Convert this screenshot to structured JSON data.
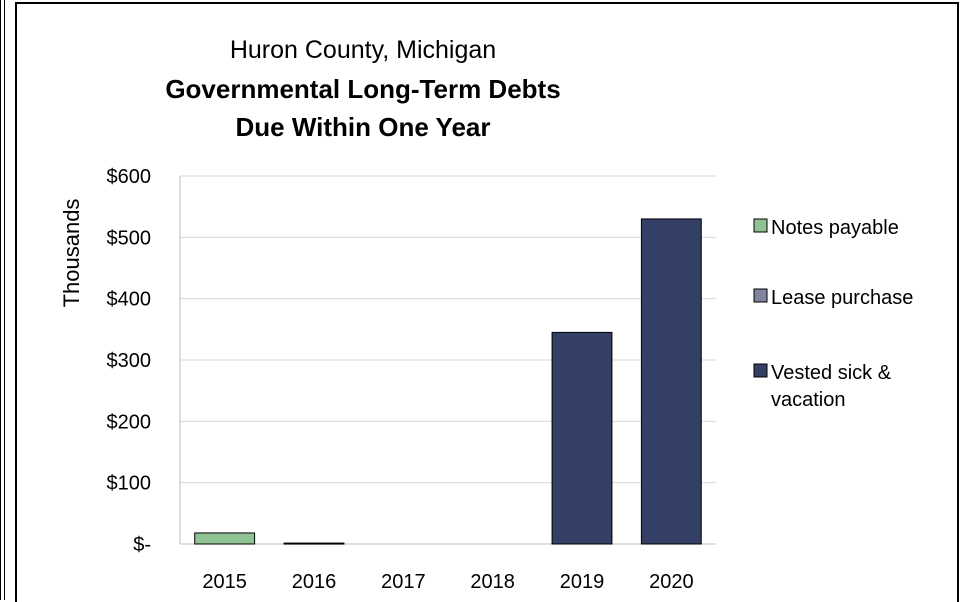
{
  "chart_data": {
    "type": "bar",
    "stacked": true,
    "title_line1": "Huron County, Michigan",
    "title_line2": "Governmental Long-Term Debts",
    "title_line3": "Due Within One Year",
    "ylabel": "Thousands",
    "xlabel": "",
    "categories": [
      "2015",
      "2016",
      "2017",
      "2018",
      "2019",
      "2020"
    ],
    "ylim": [
      0,
      600
    ],
    "yticks": [
      0,
      100,
      200,
      300,
      400,
      500,
      600
    ],
    "ytick_labels": [
      "$-",
      "$100",
      "$200",
      "$300",
      "$400",
      "$500",
      "$600"
    ],
    "grid": true,
    "legend_position": "right",
    "series": [
      {
        "name": "Notes payable",
        "color": "#8fc393",
        "values": [
          18,
          0,
          0,
          0,
          0,
          0
        ]
      },
      {
        "name": "Lease purchase",
        "color": "#7f849f",
        "values": [
          0,
          1.5,
          0,
          0,
          0,
          0
        ]
      },
      {
        "name": "Vested sick &",
        "name_line2": "vacation",
        "color": "#333f64",
        "values": [
          0,
          0,
          0,
          0,
          345,
          530
        ]
      }
    ]
  }
}
